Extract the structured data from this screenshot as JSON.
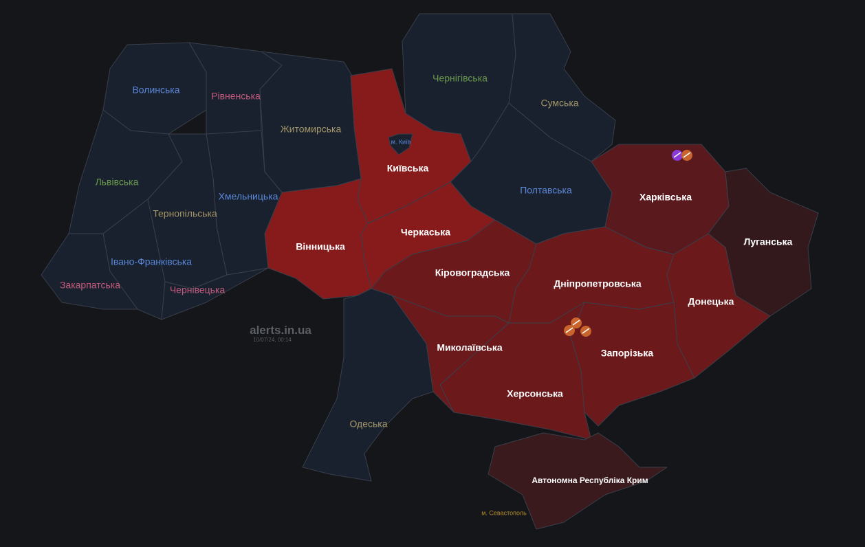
{
  "watermark": {
    "site": "alerts.in.ua",
    "datetime": "10/07/24, 00:14"
  },
  "colors": {
    "calm": "#19212f",
    "alert_bright": "#871a1b",
    "alert": "#6b191b",
    "alert_dark": "#5a1a1d",
    "alert_faint": "#33191c",
    "crimea": "#3b1a1e",
    "artillery_icon": "#c8642c",
    "small_arms_icon": "#8a3ad8"
  },
  "regions": [
    {
      "id": "volyn",
      "name": "Волинська",
      "status": "calm",
      "label_color": "#5b87d6"
    },
    {
      "id": "rivne",
      "name": "Рівненська",
      "status": "calm",
      "label_color": "#c25b7a"
    },
    {
      "id": "lviv",
      "name": "Львівська",
      "status": "calm",
      "label_color": "#6a9a4b"
    },
    {
      "id": "zhytomyr",
      "name": "Житомирська",
      "status": "calm",
      "label_color": "#a59667"
    },
    {
      "id": "kyivska",
      "name": "Київська",
      "status": "alert",
      "label_color": "#ffffff"
    },
    {
      "id": "kyiv_city",
      "name": "м. Київ",
      "status": "calm",
      "label_color": "#5b87d6"
    },
    {
      "id": "chernihiv",
      "name": "Чернігівська",
      "status": "calm",
      "label_color": "#6a9a4b"
    },
    {
      "id": "sumy",
      "name": "Сумська",
      "status": "calm",
      "label_color": "#a59667"
    },
    {
      "id": "poltava",
      "name": "Полтавська",
      "status": "calm",
      "label_color": "#5b87d6"
    },
    {
      "id": "kharkiv",
      "name": "Харківська",
      "status": "alert",
      "label_color": "#ffffff"
    },
    {
      "id": "luhansk",
      "name": "Луганська",
      "status": "alert",
      "label_color": "#ffffff"
    },
    {
      "id": "donetsk",
      "name": "Донецька",
      "status": "alert",
      "label_color": "#ffffff"
    },
    {
      "id": "dnipro",
      "name": "Дніпропетровська",
      "status": "alert",
      "label_color": "#ffffff"
    },
    {
      "id": "zaporizhzhia",
      "name": "Запорізька",
      "status": "alert",
      "label_color": "#ffffff"
    },
    {
      "id": "kherson",
      "name": "Херсонська",
      "status": "alert",
      "label_color": "#ffffff"
    },
    {
      "id": "mykolaiv",
      "name": "Миколаївська",
      "status": "alert",
      "label_color": "#ffffff"
    },
    {
      "id": "kirovohrad",
      "name": "Кіровоградська",
      "status": "alert",
      "label_color": "#ffffff"
    },
    {
      "id": "cherkasy",
      "name": "Черкаська",
      "status": "alert",
      "label_color": "#ffffff"
    },
    {
      "id": "vinnytsia",
      "name": "Вінницька",
      "status": "alert",
      "label_color": "#ffffff"
    },
    {
      "id": "khmelnytskyi",
      "name": "Хмельницька",
      "status": "calm",
      "label_color": "#5b87d6"
    },
    {
      "id": "ternopil",
      "name": "Тернопільська",
      "status": "calm",
      "label_color": "#a59667"
    },
    {
      "id": "ivano_frankivsk",
      "name": "Івано-Франківська",
      "status": "calm",
      "label_color": "#5b87d6"
    },
    {
      "id": "chernivtsi",
      "name": "Чернівецька",
      "status": "calm",
      "label_color": "#c25b7a"
    },
    {
      "id": "zakarpattia",
      "name": "Закарпатська",
      "status": "calm",
      "label_color": "#c25b7a"
    },
    {
      "id": "odesa",
      "name": "Одеська",
      "status": "calm",
      "label_color": "#a59667"
    },
    {
      "id": "crimea",
      "name": "Автономна Республіка Крим",
      "status": "alert",
      "label_color": "#ffffff"
    },
    {
      "id": "sevastopol",
      "name": "м. Севастополь",
      "status": "calm",
      "label_color": "#b8902e"
    }
  ],
  "threat_markers": [
    {
      "region": "kharkiv",
      "icons": [
        "small-arms-icon",
        "artillery-icon"
      ]
    },
    {
      "region": "dnipro",
      "icons": [
        "artillery-icon",
        "artillery-icon",
        "artillery-icon"
      ]
    }
  ]
}
